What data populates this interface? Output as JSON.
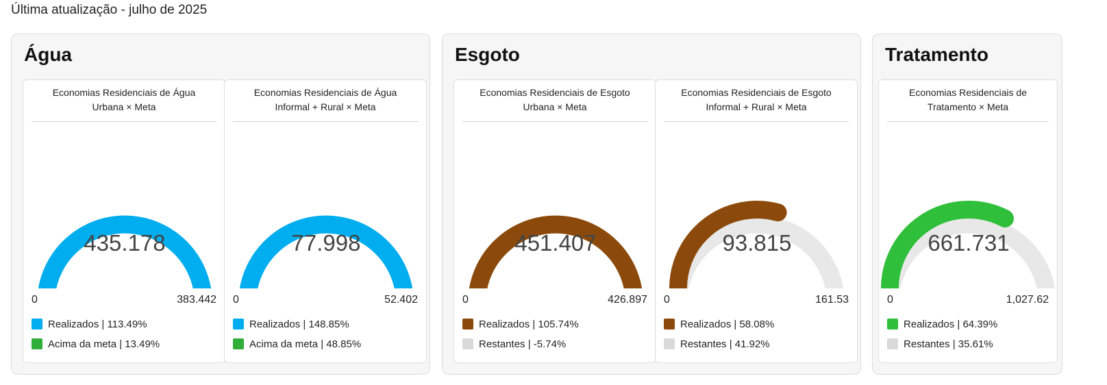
{
  "header": {
    "subtitle": "Última atualização - julho de 2025"
  },
  "colors": {
    "agua": "#00aeef",
    "esgoto": "#8b4a0b",
    "tratamento": "#2fbf3a",
    "acima": "#2fae3a",
    "restantes": "#d9d9d9",
    "track": "#e8e8e8"
  },
  "panels": [
    {
      "title": "Água"
    },
    {
      "title": "Esgoto"
    },
    {
      "title": "Tratamento"
    }
  ],
  "chart_data": [
    {
      "type": "gauge",
      "title_line1": "Economias Residenciais de Água",
      "title_line2": "Urbana × Meta",
      "value": 435178,
      "value_label": "435.178",
      "min": 0,
      "min_label": "0",
      "max": 383442,
      "max_label": "383.442",
      "fill_fraction": 1.0,
      "color": "#00aeef",
      "legend": [
        {
          "label": "Realizados | 113.49%",
          "color": "#00aeef"
        },
        {
          "label": "Acima da meta | 13.49%",
          "color": "#2fae3a"
        }
      ]
    },
    {
      "type": "gauge",
      "title_line1": "Economias Residenciais de Água",
      "title_line2": "Informal + Rural × Meta",
      "value": 77998,
      "value_label": "77.998",
      "min": 0,
      "min_label": "0",
      "max": 52402,
      "max_label": "52.402",
      "fill_fraction": 1.0,
      "color": "#00aeef",
      "legend": [
        {
          "label": "Realizados | 148.85%",
          "color": "#00aeef"
        },
        {
          "label": "Acima da meta | 48.85%",
          "color": "#2fae3a"
        }
      ]
    },
    {
      "type": "gauge",
      "title_line1": "Economias Residenciais de Esgoto",
      "title_line2": "Urbana × Meta",
      "value": 451407,
      "value_label": "451.407",
      "min": 0,
      "min_label": "0",
      "max": 426897,
      "max_label": "426.897",
      "fill_fraction": 1.0,
      "color": "#8b4a0b",
      "legend": [
        {
          "label": "Realizados | 105.74%",
          "color": "#8b4a0b"
        },
        {
          "label": "Restantes | -5.74%",
          "color": "#d9d9d9"
        }
      ]
    },
    {
      "type": "gauge",
      "title_line1": "Economias Residenciais de Esgoto",
      "title_line2": "Informal + Rural × Meta",
      "value": 93815,
      "value_label": "93.815",
      "min": 0,
      "min_label": "0",
      "max": 161530,
      "max_label": "161.53",
      "fill_fraction": 0.5808,
      "color": "#8b4a0b",
      "legend": [
        {
          "label": "Realizados | 58.08%",
          "color": "#8b4a0b"
        },
        {
          "label": "Restantes | 41.92%",
          "color": "#d9d9d9"
        }
      ]
    },
    {
      "type": "gauge",
      "title_line1": "Economias Residenciais de",
      "title_line2": "Tratamento × Meta",
      "value": 661731,
      "value_label": "661.731",
      "min": 0,
      "min_label": "0",
      "max": 1027620,
      "max_label": "1,027.62",
      "fill_fraction": 0.6439,
      "color": "#2fbf3a",
      "legend": [
        {
          "label": "Realizados | 64.39%",
          "color": "#2fbf3a"
        },
        {
          "label": "Restantes | 35.61%",
          "color": "#d9d9d9"
        }
      ]
    }
  ]
}
